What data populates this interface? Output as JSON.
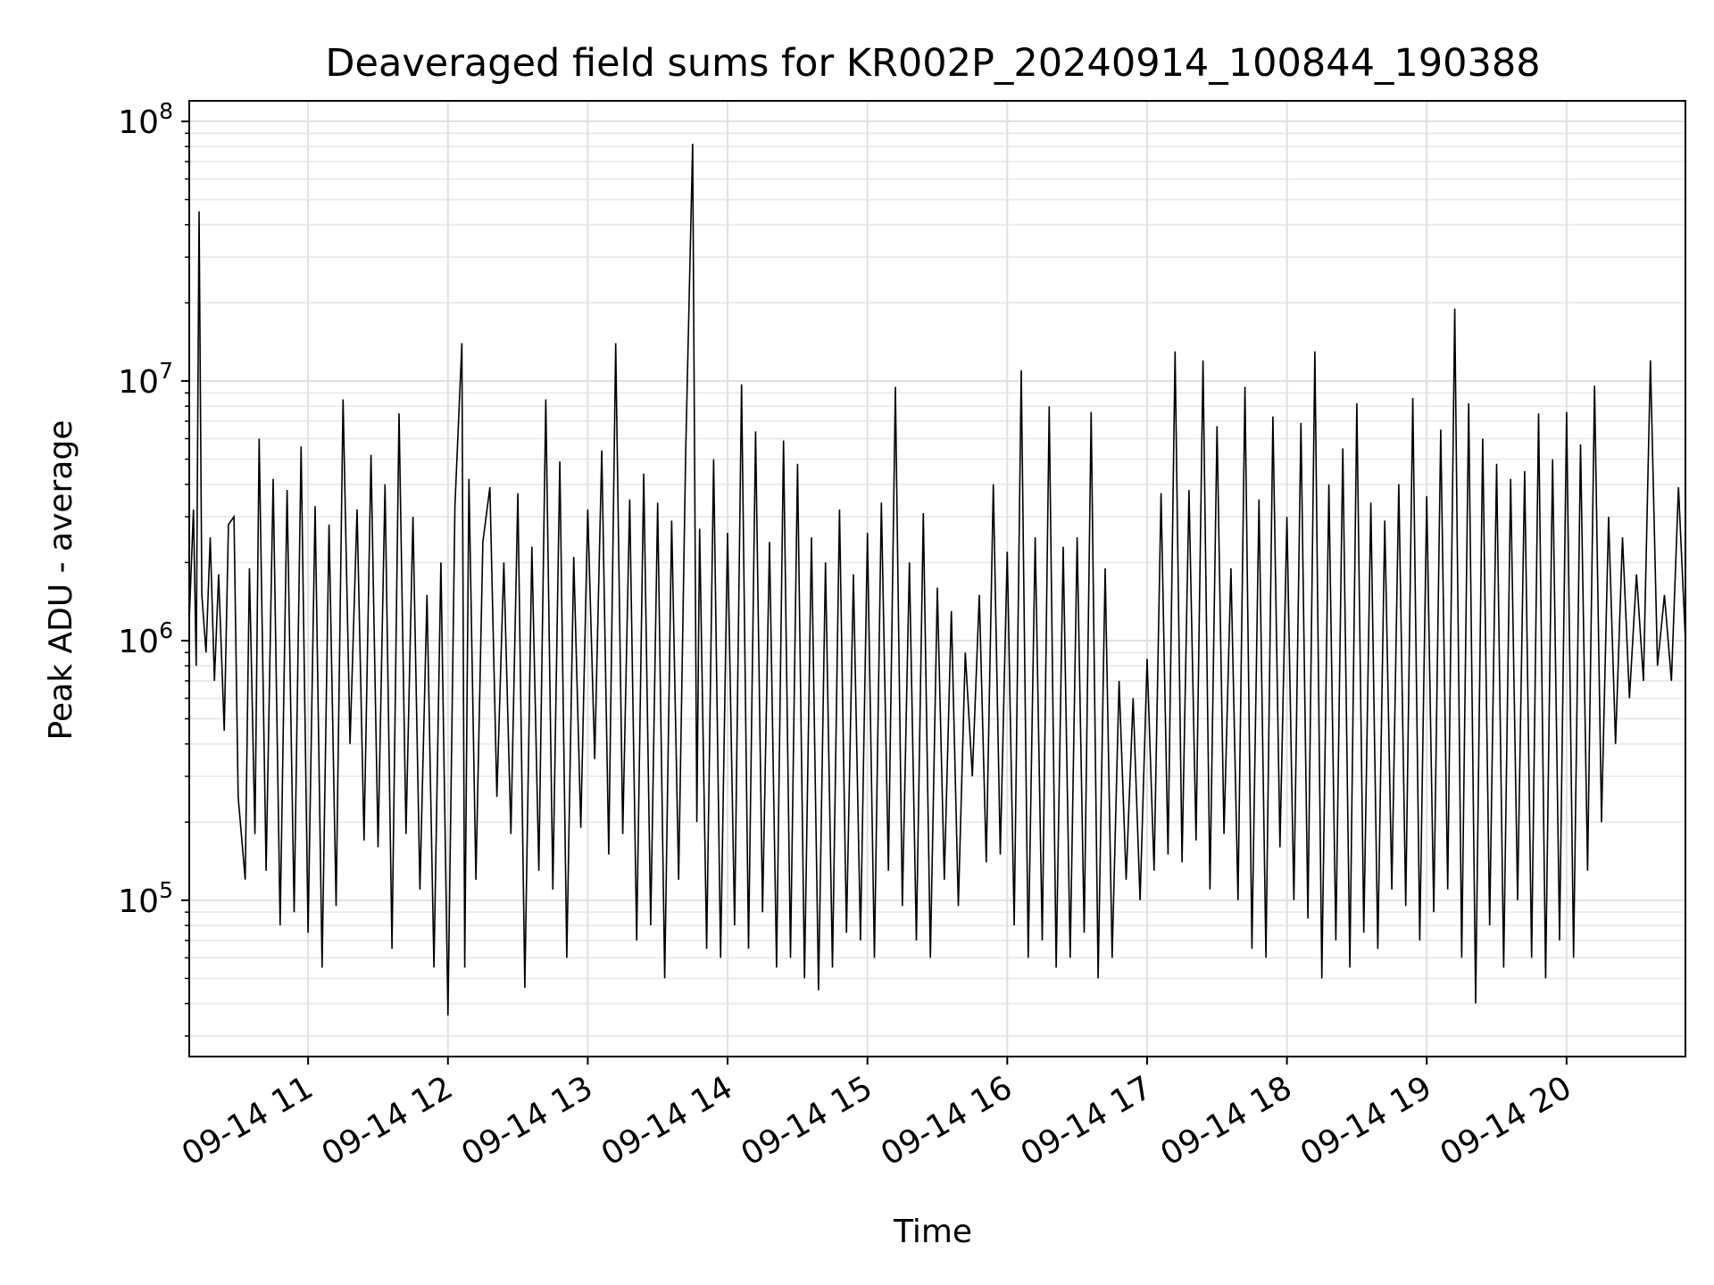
{
  "chart_data": {
    "type": "line",
    "title": "Deaveraged field sums for KR002P_20240914_100844_190388",
    "xlabel": "Time",
    "ylabel": "Peak ADU - average",
    "yscale": "log",
    "ylim": [
      25000,
      120000000
    ],
    "xlim_hours": [
      10.15,
      20.85
    ],
    "grid": true,
    "line_color": "#000000",
    "x_ticks": [
      {
        "label": "09-14 11",
        "hour": 11
      },
      {
        "label": "09-14 12",
        "hour": 12
      },
      {
        "label": "09-14 13",
        "hour": 13
      },
      {
        "label": "09-14 14",
        "hour": 14
      },
      {
        "label": "09-14 15",
        "hour": 15
      },
      {
        "label": "09-14 16",
        "hour": 16
      },
      {
        "label": "09-14 17",
        "hour": 17
      },
      {
        "label": "09-14 18",
        "hour": 18
      },
      {
        "label": "09-14 19",
        "hour": 19
      },
      {
        "label": "09-14 20",
        "hour": 20
      }
    ],
    "y_ticks": [
      {
        "base": "10",
        "exp": "5",
        "value": 100000
      },
      {
        "base": "10",
        "exp": "6",
        "value": 1000000
      },
      {
        "base": "10",
        "exp": "7",
        "value": 10000000
      },
      {
        "base": "10",
        "exp": "8",
        "value": 100000000
      }
    ],
    "series": [
      {
        "points": [
          [
            10.15,
            1200000
          ],
          [
            10.18,
            3200000
          ],
          [
            10.2,
            800000
          ],
          [
            10.22,
            45000000
          ],
          [
            10.24,
            1500000
          ],
          [
            10.27,
            900000
          ],
          [
            10.3,
            2500000
          ],
          [
            10.33,
            700000
          ],
          [
            10.36,
            1800000
          ],
          [
            10.4,
            450000
          ],
          [
            10.43,
            2800000
          ],
          [
            10.47,
            3000000
          ],
          [
            10.5,
            250000
          ],
          [
            10.55,
            120000
          ],
          [
            10.58,
            1900000
          ],
          [
            10.62,
            180000
          ],
          [
            10.65,
            6000000
          ],
          [
            10.7,
            130000
          ],
          [
            10.75,
            4200000
          ],
          [
            10.8,
            80000
          ],
          [
            10.85,
            3800000
          ],
          [
            10.9,
            90000
          ],
          [
            10.95,
            5600000
          ],
          [
            11.0,
            75000
          ],
          [
            11.05,
            3300000
          ],
          [
            11.1,
            55000
          ],
          [
            11.15,
            2800000
          ],
          [
            11.2,
            95000
          ],
          [
            11.25,
            8500000
          ],
          [
            11.3,
            400000
          ],
          [
            11.35,
            3200000
          ],
          [
            11.4,
            170000
          ],
          [
            11.45,
            5200000
          ],
          [
            11.5,
            160000
          ],
          [
            11.55,
            4000000
          ],
          [
            11.6,
            65000
          ],
          [
            11.65,
            7500000
          ],
          [
            11.7,
            180000
          ],
          [
            11.75,
            3000000
          ],
          [
            11.8,
            110000
          ],
          [
            11.85,
            1500000
          ],
          [
            11.9,
            55000
          ],
          [
            11.95,
            2000000
          ],
          [
            12.0,
            36000
          ],
          [
            12.05,
            3300000
          ],
          [
            12.1,
            14000000
          ],
          [
            12.12,
            55000
          ],
          [
            12.15,
            4200000
          ],
          [
            12.2,
            120000
          ],
          [
            12.25,
            2400000
          ],
          [
            12.3,
            3900000
          ],
          [
            12.35,
            250000
          ],
          [
            12.4,
            2000000
          ],
          [
            12.45,
            180000
          ],
          [
            12.5,
            3700000
          ],
          [
            12.55,
            46000
          ],
          [
            12.6,
            2300000
          ],
          [
            12.65,
            130000
          ],
          [
            12.7,
            8500000
          ],
          [
            12.75,
            110000
          ],
          [
            12.8,
            4900000
          ],
          [
            12.85,
            60000
          ],
          [
            12.9,
            2100000
          ],
          [
            12.95,
            190000
          ],
          [
            13.0,
            3200000
          ],
          [
            13.05,
            350000
          ],
          [
            13.1,
            5400000
          ],
          [
            13.15,
            150000
          ],
          [
            13.2,
            14000000
          ],
          [
            13.25,
            180000
          ],
          [
            13.3,
            3500000
          ],
          [
            13.35,
            70000
          ],
          [
            13.4,
            4400000
          ],
          [
            13.45,
            80000
          ],
          [
            13.5,
            3400000
          ],
          [
            13.55,
            50000
          ],
          [
            13.6,
            2900000
          ],
          [
            13.65,
            120000
          ],
          [
            13.7,
            5300000
          ],
          [
            13.75,
            82000000
          ],
          [
            13.78,
            200000
          ],
          [
            13.8,
            2700000
          ],
          [
            13.85,
            65000
          ],
          [
            13.9,
            5000000
          ],
          [
            13.95,
            60000
          ],
          [
            14.0,
            2600000
          ],
          [
            14.05,
            80000
          ],
          [
            14.1,
            9700000
          ],
          [
            14.15,
            65000
          ],
          [
            14.2,
            6400000
          ],
          [
            14.25,
            90000
          ],
          [
            14.3,
            2400000
          ],
          [
            14.35,
            55000
          ],
          [
            14.4,
            5900000
          ],
          [
            14.45,
            60000
          ],
          [
            14.5,
            4800000
          ],
          [
            14.55,
            50000
          ],
          [
            14.6,
            2500000
          ],
          [
            14.65,
            45000
          ],
          [
            14.7,
            2000000
          ],
          [
            14.75,
            55000
          ],
          [
            14.8,
            3200000
          ],
          [
            14.85,
            75000
          ],
          [
            14.9,
            1800000
          ],
          [
            14.95,
            70000
          ],
          [
            15.0,
            2600000
          ],
          [
            15.05,
            60000
          ],
          [
            15.1,
            3400000
          ],
          [
            15.15,
            130000
          ],
          [
            15.2,
            9500000
          ],
          [
            15.25,
            95000
          ],
          [
            15.3,
            2000000
          ],
          [
            15.35,
            70000
          ],
          [
            15.4,
            3100000
          ],
          [
            15.45,
            60000
          ],
          [
            15.5,
            1600000
          ],
          [
            15.55,
            120000
          ],
          [
            15.6,
            1300000
          ],
          [
            15.65,
            95000
          ],
          [
            15.7,
            900000
          ],
          [
            15.75,
            300000
          ],
          [
            15.8,
            1500000
          ],
          [
            15.85,
            140000
          ],
          [
            15.9,
            4000000
          ],
          [
            15.95,
            150000
          ],
          [
            16.0,
            2200000
          ],
          [
            16.05,
            80000
          ],
          [
            16.1,
            11000000
          ],
          [
            16.15,
            60000
          ],
          [
            16.2,
            2500000
          ],
          [
            16.25,
            70000
          ],
          [
            16.3,
            8000000
          ],
          [
            16.35,
            55000
          ],
          [
            16.4,
            2300000
          ],
          [
            16.45,
            60000
          ],
          [
            16.5,
            2500000
          ],
          [
            16.55,
            75000
          ],
          [
            16.6,
            7600000
          ],
          [
            16.65,
            50000
          ],
          [
            16.7,
            1900000
          ],
          [
            16.75,
            60000
          ],
          [
            16.8,
            700000
          ],
          [
            16.85,
            120000
          ],
          [
            16.9,
            600000
          ],
          [
            16.95,
            100000
          ],
          [
            17.0,
            850000
          ],
          [
            17.05,
            130000
          ],
          [
            17.1,
            3700000
          ],
          [
            17.15,
            150000
          ],
          [
            17.2,
            13000000
          ],
          [
            17.25,
            140000
          ],
          [
            17.3,
            3800000
          ],
          [
            17.35,
            170000
          ],
          [
            17.4,
            12000000
          ],
          [
            17.45,
            110000
          ],
          [
            17.5,
            6700000
          ],
          [
            17.55,
            180000
          ],
          [
            17.6,
            1900000
          ],
          [
            17.65,
            100000
          ],
          [
            17.7,
            9500000
          ],
          [
            17.75,
            65000
          ],
          [
            17.8,
            3500000
          ],
          [
            17.85,
            60000
          ],
          [
            17.9,
            7300000
          ],
          [
            17.95,
            160000
          ],
          [
            18.0,
            3000000
          ],
          [
            18.05,
            100000
          ],
          [
            18.1,
            6900000
          ],
          [
            18.15,
            85000
          ],
          [
            18.2,
            13000000
          ],
          [
            18.25,
            50000
          ],
          [
            18.3,
            4000000
          ],
          [
            18.35,
            70000
          ],
          [
            18.4,
            5500000
          ],
          [
            18.45,
            55000
          ],
          [
            18.5,
            8200000
          ],
          [
            18.55,
            75000
          ],
          [
            18.6,
            3400000
          ],
          [
            18.65,
            65000
          ],
          [
            18.7,
            2900000
          ],
          [
            18.75,
            110000
          ],
          [
            18.8,
            4000000
          ],
          [
            18.85,
            95000
          ],
          [
            18.9,
            8600000
          ],
          [
            18.95,
            70000
          ],
          [
            19.0,
            3600000
          ],
          [
            19.05,
            90000
          ],
          [
            19.1,
            6500000
          ],
          [
            19.15,
            110000
          ],
          [
            19.2,
            19000000
          ],
          [
            19.25,
            60000
          ],
          [
            19.3,
            8200000
          ],
          [
            19.35,
            40000
          ],
          [
            19.4,
            6000000
          ],
          [
            19.45,
            80000
          ],
          [
            19.5,
            4800000
          ],
          [
            19.55,
            55000
          ],
          [
            19.6,
            4200000
          ],
          [
            19.65,
            100000
          ],
          [
            19.7,
            4500000
          ],
          [
            19.75,
            60000
          ],
          [
            19.8,
            7500000
          ],
          [
            19.85,
            50000
          ],
          [
            19.9,
            5000000
          ],
          [
            19.95,
            70000
          ],
          [
            20.0,
            7600000
          ],
          [
            20.05,
            60000
          ],
          [
            20.1,
            5700000
          ],
          [
            20.15,
            130000
          ],
          [
            20.2,
            9600000
          ],
          [
            20.25,
            200000
          ],
          [
            20.3,
            3000000
          ],
          [
            20.35,
            400000
          ],
          [
            20.4,
            2500000
          ],
          [
            20.45,
            600000
          ],
          [
            20.5,
            1800000
          ],
          [
            20.55,
            700000
          ],
          [
            20.6,
            12000000
          ],
          [
            20.65,
            800000
          ],
          [
            20.7,
            1500000
          ],
          [
            20.75,
            700000
          ],
          [
            20.8,
            3900000
          ],
          [
            20.85,
            1000000
          ]
        ]
      }
    ]
  }
}
